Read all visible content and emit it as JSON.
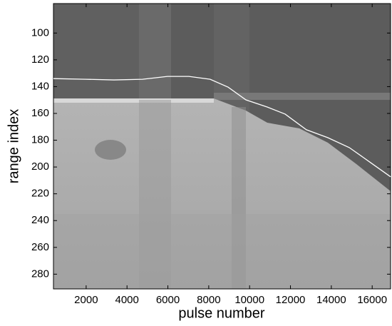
{
  "chart_data": {
    "type": "line",
    "xlabel": "pulse number",
    "ylabel": "range index",
    "x": [
      400,
      1970,
      3360,
      4760,
      5980,
      7030,
      8070,
      8950,
      9820,
      10860,
      11740,
      12780,
      13830,
      14880,
      15920,
      16900
    ],
    "series": [
      {
        "color": "#ffffff",
        "values": [
          134,
          134.5,
          135,
          134.5,
          132.4,
          132.4,
          134.5,
          140.4,
          149.9,
          155.2,
          160.5,
          172.2,
          178.1,
          185.5,
          196.7,
          207.3
        ]
      }
    ],
    "xlim": [
      400,
      16900
    ],
    "ylim": [
      78,
      291
    ],
    "y_inverted": true,
    "xticks": [
      2000,
      4000,
      6000,
      8000,
      10000,
      12000,
      14000,
      16000
    ],
    "yticks": [
      100,
      120,
      140,
      160,
      180,
      200,
      220,
      240,
      260,
      280
    ]
  }
}
